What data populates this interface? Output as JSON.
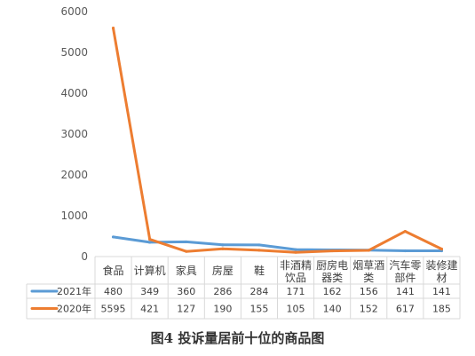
{
  "chart_data": {
    "type": "line",
    "caption": "图4  投诉量居前十位的商品图",
    "categories": [
      [
        "食品"
      ],
      [
        "计算机"
      ],
      [
        "家具"
      ],
      [
        "房屋"
      ],
      [
        "鞋"
      ],
      [
        "非酒精",
        "饮品"
      ],
      [
        "厨房电",
        "器类"
      ],
      [
        "烟草酒",
        "类"
      ],
      [
        "汽车零",
        "部件"
      ],
      [
        "装修建",
        "材"
      ]
    ],
    "series": [
      {
        "name": "2021年",
        "color": "#5b9bd5",
        "values": [
          480,
          349,
          360,
          286,
          284,
          171,
          162,
          156,
          141,
          141
        ]
      },
      {
        "name": "2020年",
        "color": "#ed7d31",
        "values": [
          5595,
          421,
          127,
          190,
          155,
          105,
          140,
          152,
          617,
          185
        ]
      }
    ],
    "y_ticks": [
      "0",
      "1000",
      "2000",
      "3000",
      "4000",
      "5000",
      "6000"
    ],
    "ylim": [
      0,
      6000
    ],
    "grid": false,
    "legend": "data-table-left"
  }
}
